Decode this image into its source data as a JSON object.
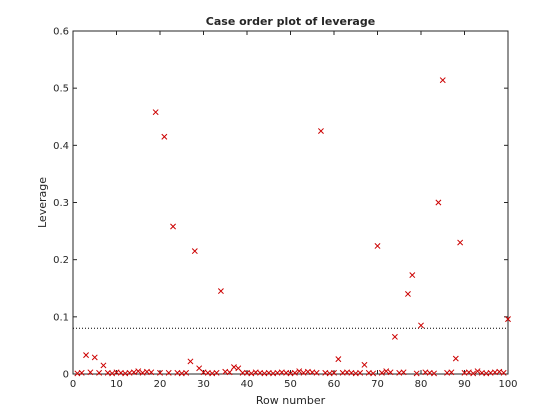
{
  "chart_data": {
    "type": "scatter",
    "title": "Case order plot of leverage",
    "xlabel": "Row number",
    "ylabel": "Leverage",
    "xlim": [
      0,
      100
    ],
    "ylim": [
      0,
      0.6
    ],
    "xticks": [
      "0",
      "10",
      "20",
      "30",
      "40",
      "50",
      "60",
      "70",
      "80",
      "90",
      "100"
    ],
    "yticks": [
      "0",
      "0.1",
      "0.2",
      "0.3",
      "0.4",
      "0.5",
      "0.6"
    ],
    "grid": false,
    "marker": "x",
    "marker_color": "#cc0000",
    "reference_line": {
      "y": 0.08,
      "style": "dotted",
      "color": "#000000"
    },
    "x": [
      1,
      2,
      3,
      4,
      5,
      6,
      7,
      8,
      9,
      10,
      11,
      12,
      13,
      14,
      15,
      16,
      17,
      18,
      19,
      20,
      21,
      22,
      23,
      24,
      25,
      26,
      27,
      28,
      29,
      30,
      31,
      32,
      33,
      34,
      35,
      36,
      37,
      38,
      39,
      40,
      41,
      42,
      43,
      44,
      45,
      46,
      47,
      48,
      49,
      50,
      51,
      52,
      53,
      54,
      55,
      56,
      57,
      58,
      59,
      60,
      61,
      62,
      63,
      64,
      65,
      66,
      67,
      68,
      69,
      70,
      71,
      72,
      73,
      74,
      75,
      76,
      77,
      78,
      79,
      80,
      81,
      82,
      83,
      84,
      85,
      86,
      87,
      88,
      89,
      90,
      91,
      92,
      93,
      94,
      95,
      96,
      97,
      98,
      99,
      100
    ],
    "y": [
      0.001,
      0.002,
      0.033,
      0.003,
      0.029,
      0.002,
      0.015,
      0.002,
      0.001,
      0.003,
      0.002,
      0.001,
      0.002,
      0.003,
      0.005,
      0.002,
      0.004,
      0.003,
      0.458,
      0.002,
      0.415,
      0.002,
      0.258,
      0.002,
      0.001,
      0.002,
      0.022,
      0.215,
      0.01,
      0.003,
      0.002,
      0.001,
      0.002,
      0.145,
      0.004,
      0.003,
      0.012,
      0.01,
      0.002,
      0.002,
      0.001,
      0.003,
      0.002,
      0.001,
      0.002,
      0.001,
      0.002,
      0.003,
      0.002,
      0.001,
      0.002,
      0.005,
      0.002,
      0.004,
      0.003,
      0.002,
      0.425,
      0.002,
      0.001,
      0.002,
      0.026,
      0.002,
      0.003,
      0.002,
      0.001,
      0.002,
      0.016,
      0.002,
      0.001,
      0.224,
      0.002,
      0.005,
      0.003,
      0.065,
      0.002,
      0.003,
      0.14,
      0.173,
      0.001,
      0.085,
      0.003,
      0.002,
      0.001,
      0.3,
      0.514,
      0.002,
      0.003,
      0.027,
      0.23,
      0.002,
      0.003,
      0.001,
      0.005,
      0.002,
      0.001,
      0.002,
      0.003,
      0.004,
      0.002,
      0.096
    ]
  }
}
